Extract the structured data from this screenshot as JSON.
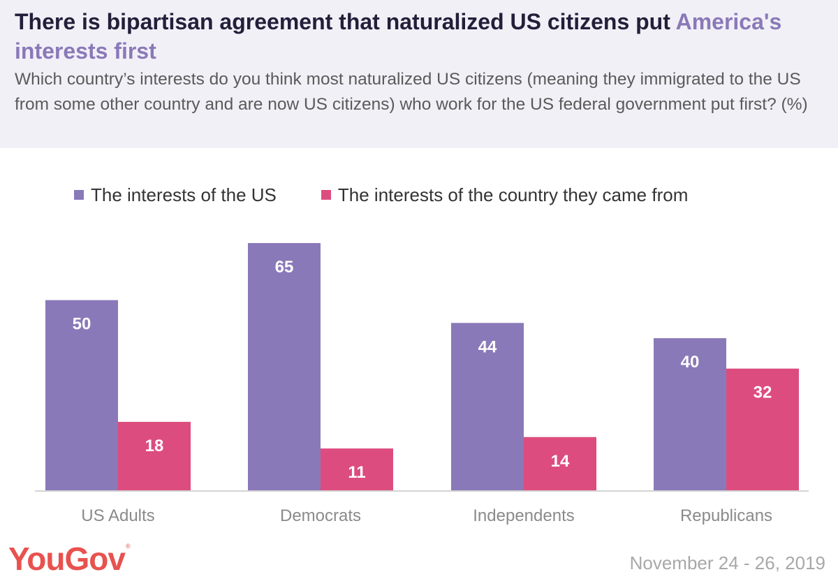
{
  "header": {
    "title_main": "There is bipartisan agreement that naturalized US citizens put ",
    "title_accent": "America's interests first",
    "subtitle": "Which country’s interests do you think most naturalized US citizens (meaning they immigrated to the US from some other country and are now US citizens) who work for the US federal government put first? (%)"
  },
  "colors": {
    "accent": "#8a79b8",
    "series_us": "#8a79b8",
    "series_origin": "#dd4c7e",
    "baseline": "#d3d3d3",
    "header_bg": "#f1f0f7"
  },
  "chart_data": {
    "type": "bar",
    "categories": [
      "US Adults",
      "Democrats",
      "Independents",
      "Republicans"
    ],
    "series": [
      {
        "name": "The interests of the US",
        "color": "#8a79b8",
        "values": [
          50,
          65,
          44,
          40
        ]
      },
      {
        "name": "The interests of the country they came from",
        "color": "#dd4c7e",
        "values": [
          18,
          11,
          14,
          32
        ]
      }
    ],
    "ylim": [
      0,
      65
    ],
    "grid": false,
    "legend": "top-left",
    "data_labels": true
  },
  "footer": {
    "brand": "YouGov",
    "brand_mark": "®",
    "date": "November 24 - 26, 2019"
  }
}
